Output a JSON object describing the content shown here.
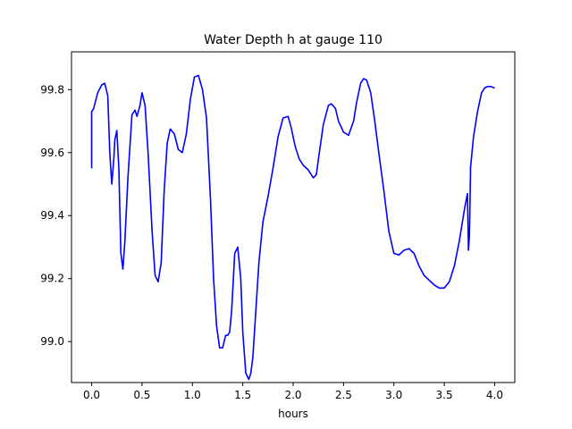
{
  "chart_data": {
    "type": "line",
    "title": "Water Depth h at gauge 110",
    "xlabel": "hours",
    "ylabel": "",
    "xlim": [
      -0.2,
      4.2
    ],
    "ylim": [
      98.87,
      99.92
    ],
    "xticks": [
      0.0,
      0.5,
      1.0,
      1.5,
      2.0,
      2.5,
      3.0,
      3.5,
      4.0
    ],
    "xtick_labels": [
      "0.0",
      "0.5",
      "1.0",
      "1.5",
      "2.0",
      "2.5",
      "3.0",
      "3.5",
      "4.0"
    ],
    "yticks": [
      99.0,
      99.2,
      99.4,
      99.6,
      99.8
    ],
    "ytick_labels": [
      "99.0",
      "99.2",
      "99.4",
      "99.6",
      "99.8"
    ],
    "grid": false,
    "series": [
      {
        "color": "#0000ff",
        "x": [
          0.0,
          0.0,
          0.02,
          0.06,
          0.1,
          0.13,
          0.16,
          0.18,
          0.2,
          0.22,
          0.23,
          0.25,
          0.27,
          0.29,
          0.31,
          0.33,
          0.36,
          0.4,
          0.43,
          0.45,
          0.48,
          0.5,
          0.53,
          0.56,
          0.6,
          0.63,
          0.66,
          0.69,
          0.72,
          0.75,
          0.78,
          0.82,
          0.86,
          0.9,
          0.94,
          0.98,
          1.02,
          1.06,
          1.1,
          1.14,
          1.18,
          1.21,
          1.24,
          1.27,
          1.3,
          1.33,
          1.35,
          1.37,
          1.39,
          1.42,
          1.45,
          1.48,
          1.5,
          1.53,
          1.56,
          1.58,
          1.6,
          1.63,
          1.66,
          1.7,
          1.75,
          1.8,
          1.85,
          1.9,
          1.95,
          1.98,
          2.02,
          2.06,
          2.1,
          2.15,
          2.2,
          2.23,
          2.26,
          2.3,
          2.35,
          2.38,
          2.42,
          2.45,
          2.5,
          2.55,
          2.6,
          2.63,
          2.67,
          2.7,
          2.73,
          2.77,
          2.81,
          2.85,
          2.9,
          2.95,
          3.0,
          3.05,
          3.1,
          3.15,
          3.2,
          3.25,
          3.3,
          3.35,
          3.4,
          3.45,
          3.5,
          3.55,
          3.6,
          3.65,
          3.7,
          3.73,
          3.74,
          3.75,
          3.76,
          3.76,
          3.79,
          3.83,
          3.87,
          3.9,
          3.93,
          3.96,
          4.0
        ],
        "values": [
          99.55,
          99.73,
          99.74,
          99.79,
          99.815,
          99.82,
          99.78,
          99.6,
          99.5,
          99.58,
          99.64,
          99.67,
          99.55,
          99.28,
          99.23,
          99.32,
          99.52,
          99.72,
          99.735,
          99.715,
          99.75,
          99.79,
          99.75,
          99.6,
          99.35,
          99.21,
          99.19,
          99.25,
          99.48,
          99.63,
          99.675,
          99.66,
          99.61,
          99.6,
          99.66,
          99.77,
          99.84,
          99.845,
          99.8,
          99.71,
          99.45,
          99.2,
          99.05,
          98.98,
          98.98,
          99.02,
          99.02,
          99.03,
          99.1,
          99.28,
          99.3,
          99.2,
          99.03,
          98.9,
          98.88,
          98.9,
          98.95,
          99.1,
          99.25,
          99.38,
          99.46,
          99.55,
          99.65,
          99.71,
          99.715,
          99.68,
          99.62,
          99.58,
          99.56,
          99.545,
          99.52,
          99.53,
          99.6,
          99.69,
          99.75,
          99.755,
          99.74,
          99.7,
          99.665,
          99.655,
          99.7,
          99.76,
          99.82,
          99.835,
          99.83,
          99.79,
          99.7,
          99.6,
          99.48,
          99.35,
          99.28,
          99.275,
          99.29,
          99.295,
          99.28,
          99.24,
          99.21,
          99.195,
          99.18,
          99.17,
          99.17,
          99.19,
          99.24,
          99.32,
          99.42,
          99.47,
          99.29,
          99.34,
          99.53,
          99.55,
          99.65,
          99.73,
          99.79,
          99.805,
          99.81,
          99.81,
          99.805
        ]
      }
    ]
  }
}
